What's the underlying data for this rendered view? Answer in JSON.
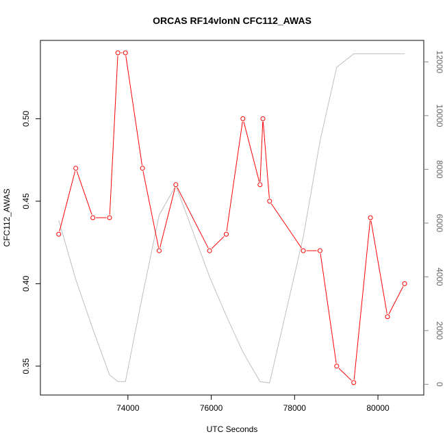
{
  "chart_data": {
    "type": "line",
    "title": "ORCAS RF14vlonN CFC112_AWAS",
    "xlabel": "UTC Seconds",
    "ylabel": "CFC112_AWAS",
    "xlim": [
      71900,
      81100
    ],
    "ylim": [
      0.3325,
      0.5475
    ],
    "y2lim": [
      -400,
      12800
    ],
    "x_ticks": [
      74000,
      76000,
      78000,
      80000
    ],
    "x_tick_labels": [
      "74000",
      "76000",
      "78000",
      "80000"
    ],
    "y_ticks": [
      0.35,
      0.4,
      0.45,
      0.5
    ],
    "y_tick_labels": [
      "0.35",
      "0.40",
      "0.45",
      "0.50"
    ],
    "y2_ticks": [
      0,
      2000,
      4000,
      6000,
      8000,
      10000,
      12000
    ],
    "y2_tick_labels": [
      "0",
      "2000",
      "4000",
      "6000",
      "8000",
      "10000",
      "12000"
    ],
    "grid": false,
    "series": [
      {
        "color": "#ff0000",
        "marker": "circle",
        "axis": "left",
        "x": [
          72340,
          72750,
          73160,
          73560,
          73760,
          73940,
          74350,
          74750,
          75150,
          75960,
          76360,
          76760,
          77170,
          77240,
          77400,
          78210,
          78610,
          79010,
          79420,
          79820,
          80230,
          80640
        ],
        "y": [
          0.43,
          0.47,
          0.44,
          0.44,
          0.54,
          0.54,
          0.47,
          0.42,
          0.46,
          0.42,
          0.43,
          0.5,
          0.46,
          0.5,
          0.45,
          0.42,
          0.42,
          0.35,
          0.34,
          0.44,
          0.38,
          0.4
        ]
      },
      {
        "color": "#bebebe",
        "marker": "none",
        "axis": "right",
        "x": [
          72340,
          72750,
          73160,
          73560,
          73760,
          73940,
          74350,
          74750,
          75150,
          75960,
          76360,
          76760,
          77170,
          77400,
          78210,
          78610,
          79010,
          79420,
          80640
        ],
        "y": [
          6100,
          3900,
          2050,
          350,
          100,
          100,
          3300,
          6300,
          7400,
          4000,
          2550,
          1200,
          100,
          50,
          5500,
          9050,
          11800,
          12300,
          12300
        ]
      }
    ]
  }
}
